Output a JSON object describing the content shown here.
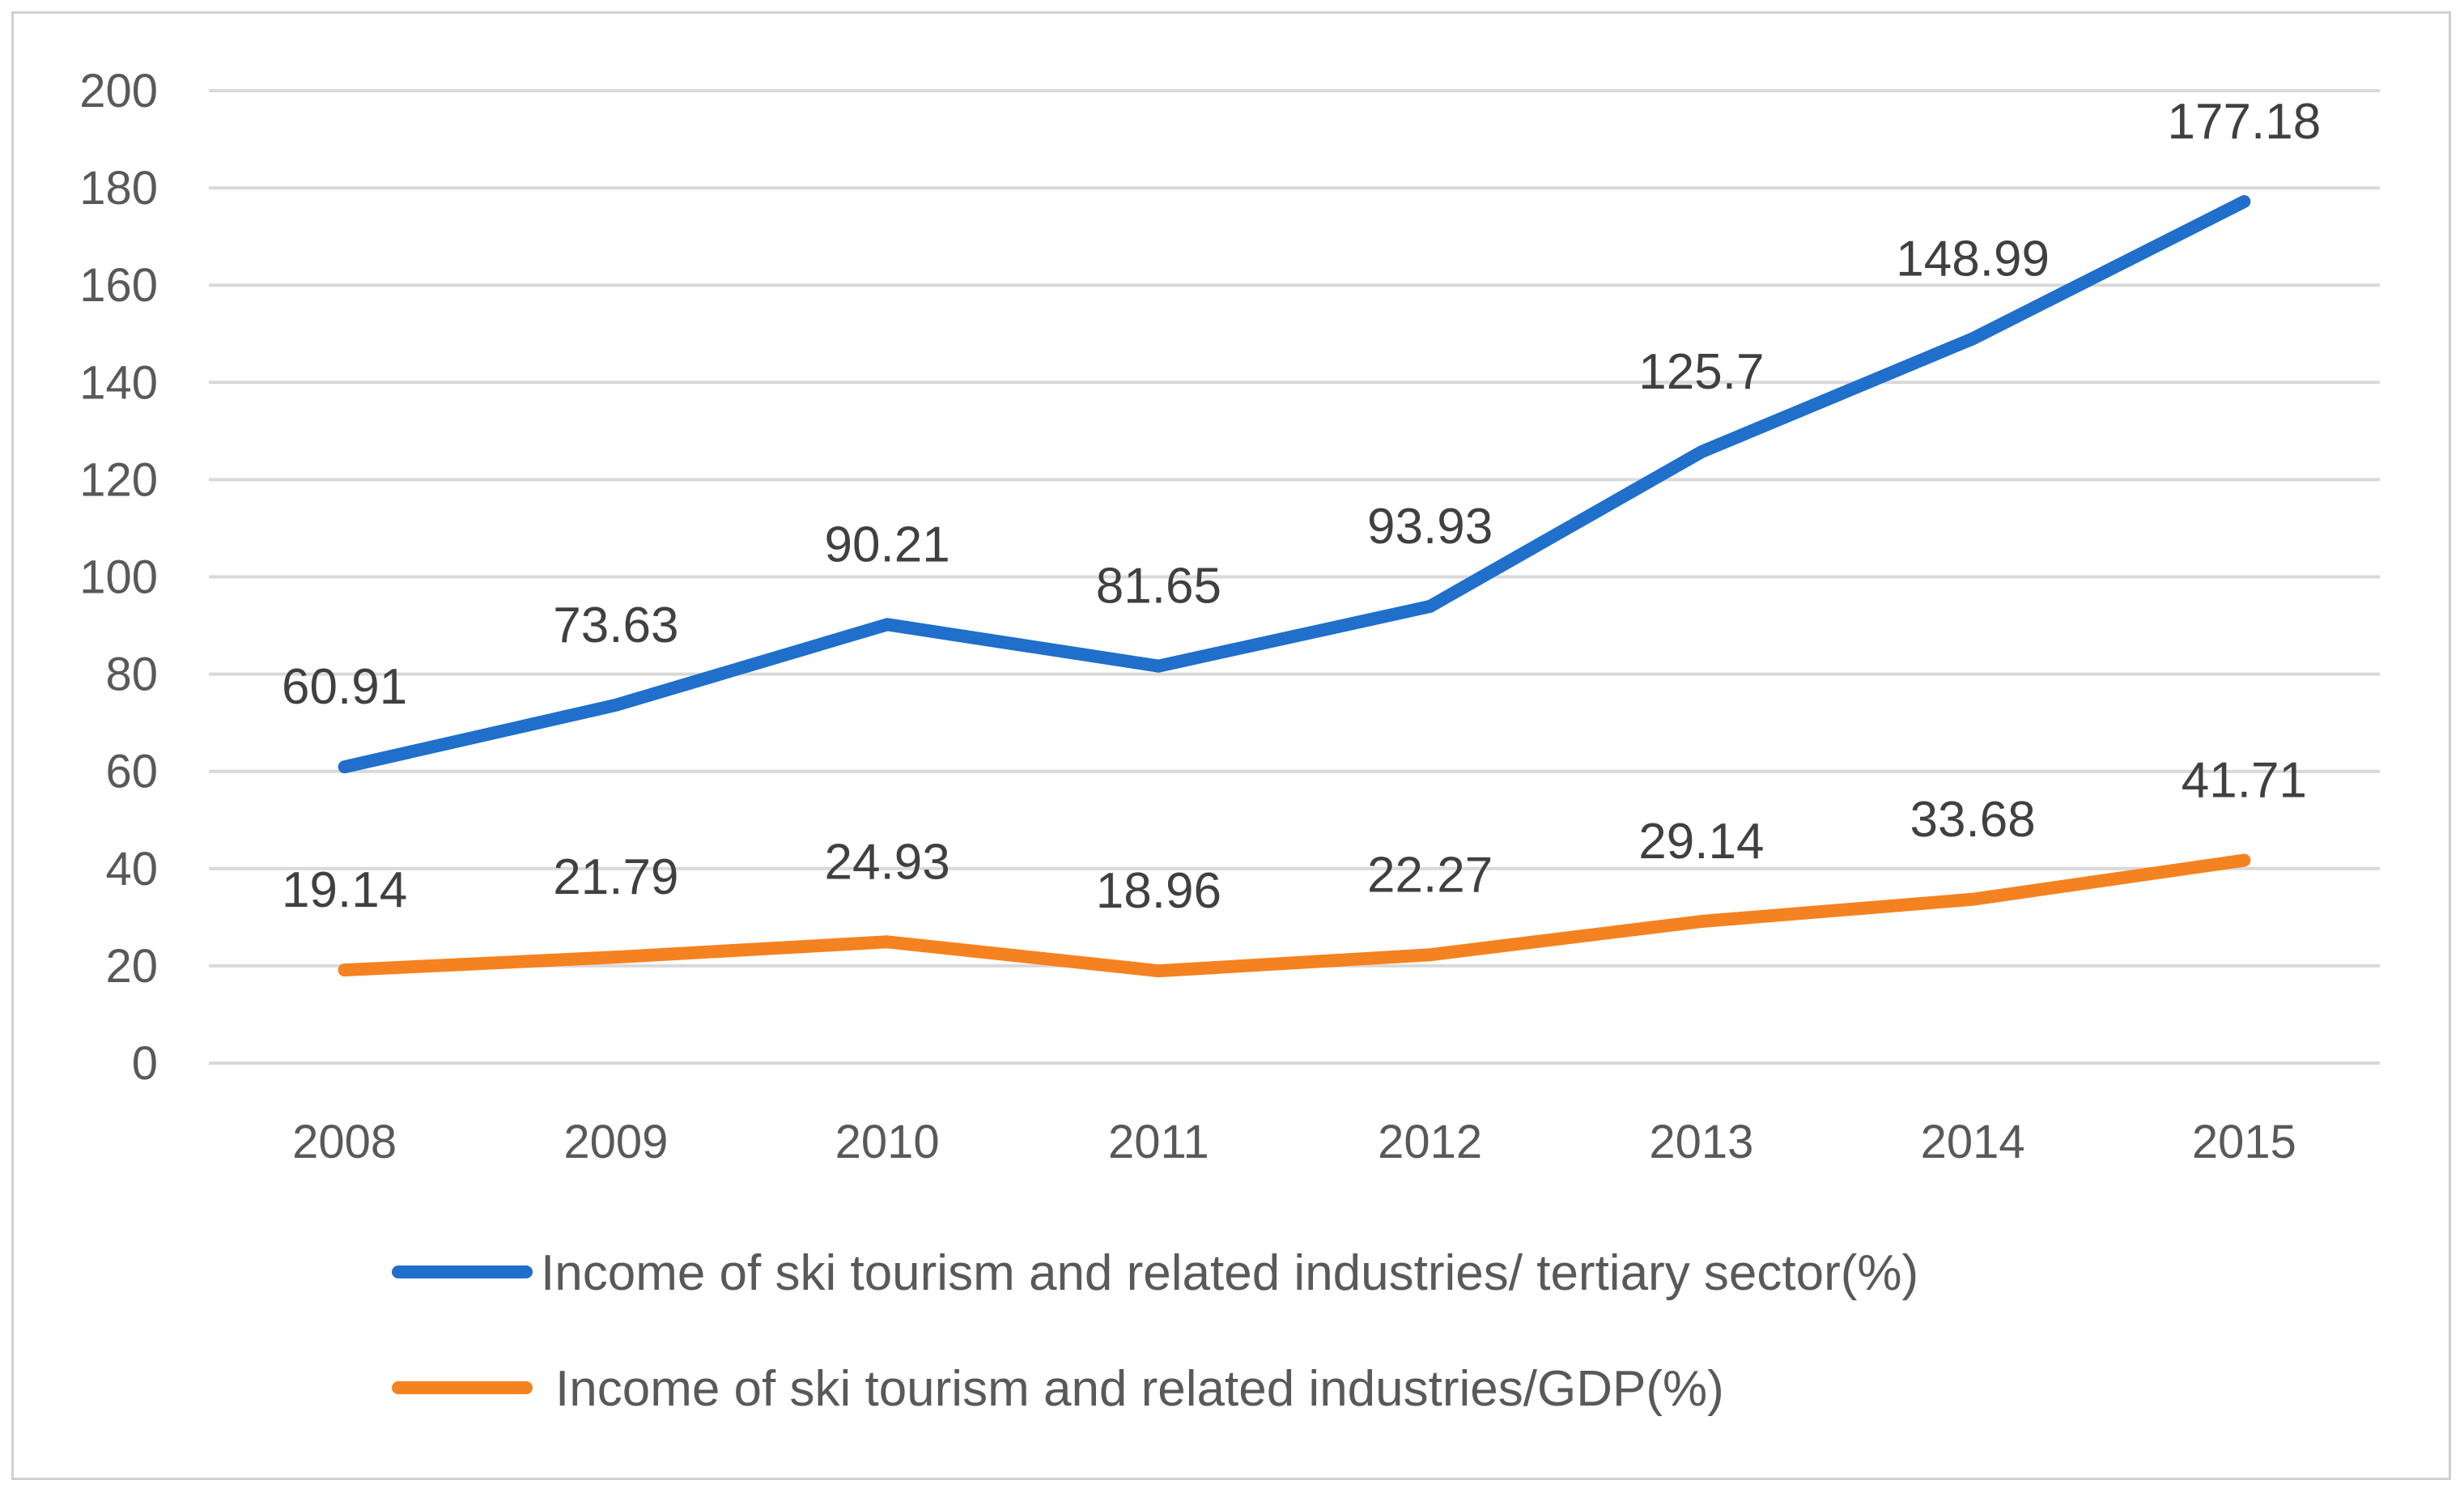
{
  "chart_data": {
    "type": "line",
    "title": "",
    "xlabel": "",
    "ylabel": "",
    "categories": [
      "2008",
      "2009",
      "2010",
      "2011",
      "2012",
      "2013",
      "2014",
      "2015"
    ],
    "ylim": [
      0,
      200
    ],
    "yticks": [
      "0",
      "20",
      "40",
      "60",
      "80",
      "100",
      "120",
      "140",
      "160",
      "180",
      "200"
    ],
    "grid": true,
    "legend_position": "bottom",
    "series": [
      {
        "name": "Income of ski tourism and related industries/ tertiary sector(%)",
        "color": "#1f6fcb",
        "values": [
          60.91,
          73.63,
          90.21,
          81.65,
          93.93,
          125.7,
          148.99,
          177.18
        ],
        "labels": [
          "60.91",
          "73.63",
          "90.21",
          "81.65",
          "93.93",
          "125.7",
          "148.99",
          "177.18"
        ]
      },
      {
        "name": "Income of ski tourism and related industries/GDP(%)",
        "color": "#f58220",
        "values": [
          19.14,
          21.79,
          24.93,
          18.96,
          22.27,
          29.14,
          33.68,
          41.71
        ],
        "labels": [
          "19.14",
          "21.79",
          "24.93",
          "18.96",
          "22.27",
          "29.14",
          "33.68",
          "41.71"
        ]
      }
    ]
  }
}
